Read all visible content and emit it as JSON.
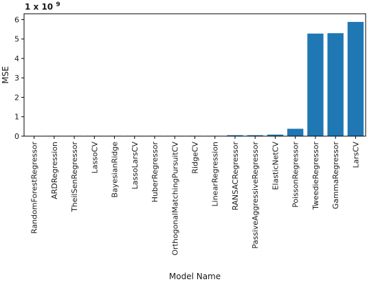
{
  "chart_data": {
    "type": "bar",
    "title": "",
    "xlabel": "Model Name",
    "ylabel": "MSE",
    "scale_multiplier_text": "1 x 10",
    "scale_multiplier_exponent": "9",
    "ylim": [
      0,
      6.3
    ],
    "yticks": [
      0,
      1,
      2,
      3,
      4,
      5,
      6
    ],
    "bar_color": "#1f77b4",
    "grid": false,
    "categories": [
      "RandomForestRegressor",
      "ARDRegression",
      "TheilSenRegressor",
      "LassoCV",
      "BayesianRidge",
      "LassoLarsCV",
      "HuberRegressor",
      "OrthogonalMatchingPursuitCV",
      "RidgeCV",
      "LinearRegression",
      "RANSACRegressor",
      "PassiveAggressiveRegressor",
      "ElasticNetCV",
      "PoissonRegressor",
      "TweedieRegressor",
      "GammaRegressor",
      "LarsCV"
    ],
    "values": [
      0.0,
      0.02,
      0.02,
      0.02,
      0.02,
      0.02,
      0.02,
      0.02,
      0.02,
      0.02,
      0.05,
      0.05,
      0.08,
      0.38,
      5.28,
      5.3,
      5.88
    ]
  }
}
